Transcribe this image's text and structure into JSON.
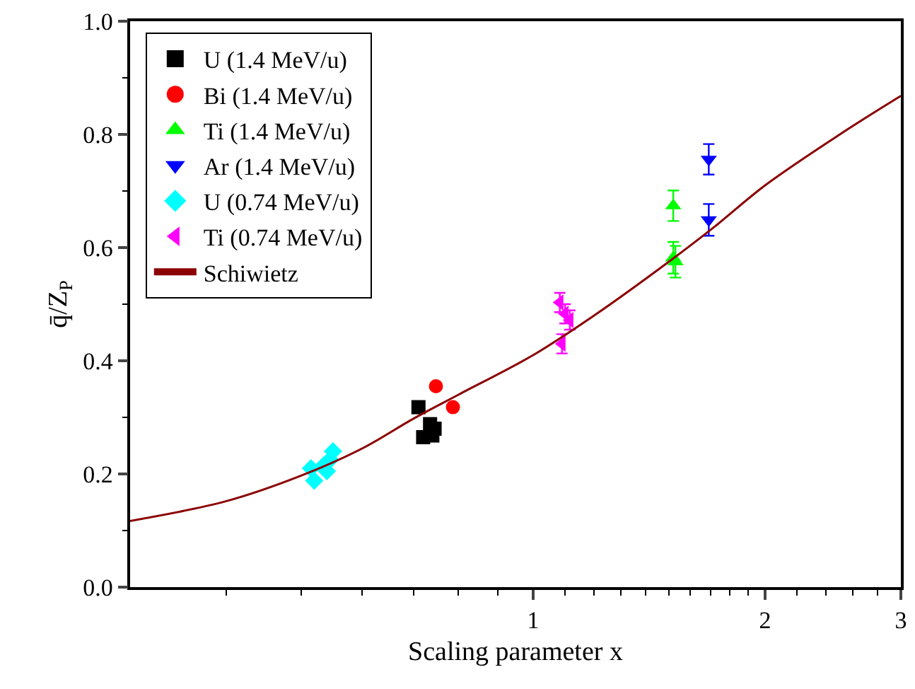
{
  "chart_data": {
    "type": "scatter",
    "xlabel": "Scaling parameter x",
    "ylabel": "q̄/Z$_{P}$",
    "log": "x",
    "xlim": [
      0.3,
      3
    ],
    "ylim": [
      0,
      1.0
    ],
    "xticks": [
      {
        "value": 0.4,
        "label": null
      },
      {
        "value": 0.5,
        "label": null
      },
      {
        "value": 0.6,
        "label": null
      },
      {
        "value": 0.7,
        "label": null
      },
      {
        "value": 0.8,
        "label": null
      },
      {
        "value": 0.9,
        "label": null
      },
      1,
      {
        "value": 1.1,
        "label": null
      },
      {
        "value": 1.2,
        "label": null
      },
      {
        "value": 1.3,
        "label": null
      },
      {
        "value": 1.4,
        "label": null
      },
      {
        "value": 1.5,
        "label": null
      },
      {
        "value": 1.6,
        "label": null
      },
      {
        "value": 1.7,
        "label": null
      },
      {
        "value": 1.8,
        "label": null
      },
      {
        "value": 1.9,
        "label": null
      },
      2,
      {
        "value": 2.2,
        "label": null
      },
      {
        "value": 2.4,
        "label": null
      },
      {
        "value": 2.6,
        "label": null
      },
      {
        "value": 2.8,
        "label": null
      },
      3
    ],
    "yticks": [
      {
        "value": 0,
        "label": "0.0"
      },
      {
        "value": 0.1,
        "label": null
      },
      {
        "value": 0.2,
        "label": "0.2"
      },
      {
        "value": 0.3,
        "label": null
      },
      {
        "value": 0.4,
        "label": "0.4"
      },
      {
        "value": 0.5,
        "label": null
      },
      {
        "value": 0.6,
        "label": "0.6"
      },
      {
        "value": 0.7,
        "label": null
      },
      {
        "value": 0.8,
        "label": "0.8"
      },
      {
        "value": 0.9,
        "label": null
      },
      {
        "value": 1.0,
        "label": "1.0"
      }
    ],
    "legend": "top left",
    "series": [
      {
        "name": "U (1.4 MeV/u)",
        "color": "#000000",
        "marker": "square",
        "x": [
          0.71,
          0.72,
          0.735,
          0.74,
          0.745
        ],
        "values": [
          0.318,
          0.265,
          0.288,
          0.268,
          0.28
        ]
      },
      {
        "name": "Bi (1.4 MeV/u)",
        "color": "#ff0000",
        "marker": "circle",
        "x": [
          0.748,
          0.787
        ],
        "values": [
          0.355,
          0.318
        ]
      },
      {
        "name": "Ti (1.4 MeV/u)",
        "color": "#00ff00",
        "marker": "triangle",
        "x": [
          1.52,
          1.52,
          1.53
        ],
        "values": [
          0.674,
          0.582,
          0.575
        ],
        "errors": [
          0.027,
          0.028,
          0.028
        ]
      },
      {
        "name": "Ar (1.4 MeV/u)",
        "color": "#0000ff",
        "marker": "triangle-down",
        "x": [
          1.69,
          1.69
        ],
        "values": [
          0.756,
          0.649
        ],
        "errors": [
          0.027,
          0.028
        ]
      },
      {
        "name": "U (0.74 MeV/u)",
        "color": "#00ffff",
        "marker": "diamond",
        "x": [
          0.515,
          0.52,
          0.535,
          0.54,
          0.545,
          0.55
        ],
        "values": [
          0.21,
          0.188,
          0.215,
          0.205,
          0.225,
          0.24
        ]
      },
      {
        "name": "Ti (0.74 MeV/u)",
        "color": "#ff00ff",
        "marker": "triangle-left",
        "x": [
          1.083,
          1.1,
          1.116,
          1.09
        ],
        "values": [
          0.503,
          0.483,
          0.472,
          0.43
        ],
        "errors": [
          0.017,
          0.017,
          0.017,
          0.017
        ]
      },
      {
        "name": "Schiwietz",
        "type": "line",
        "color": "#8b0000",
        "marker": "none",
        "line_style": "solid",
        "x": [
          0.3,
          0.4,
          0.5,
          0.6,
          0.7,
          0.8,
          1.0,
          1.2,
          1.5,
          1.72,
          2.0,
          2.5,
          3.0
        ],
        "values": [
          0.117,
          0.152,
          0.197,
          0.245,
          0.298,
          0.34,
          0.41,
          0.48,
          0.575,
          0.637,
          0.71,
          0.8,
          0.868
        ]
      }
    ]
  }
}
